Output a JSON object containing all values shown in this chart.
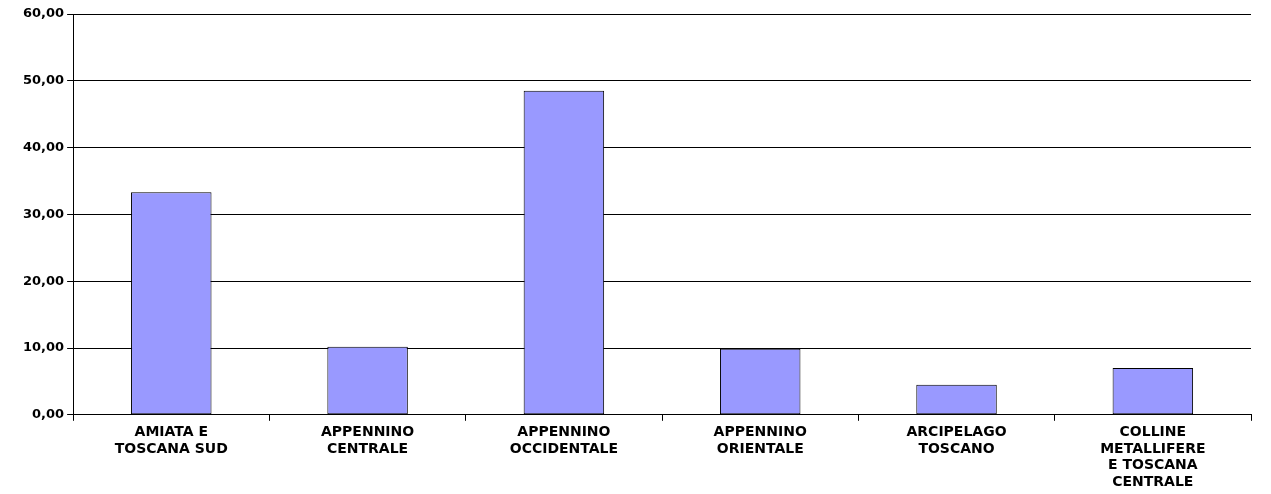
{
  "chart_data": {
    "type": "bar",
    "categories": [
      "AMIATA E TOSCANA SUD",
      "APPENNINO CENTRALE",
      "APPENNINO OCCIDENTALE",
      "APPENNINO ORIENTALE",
      "ARCIPELAGO TOSCANO",
      "COLLINE METALLIFERE E TOSCANA CENTRALE"
    ],
    "values": [
      33.3,
      10.2,
      48.5,
      9.9,
      4.5,
      7.0
    ],
    "color": "#9999ff",
    "ylim": [
      0,
      60
    ],
    "yticks": [
      {
        "value": 0,
        "label": "0,00"
      },
      {
        "value": 10,
        "label": "10,00"
      },
      {
        "value": 20,
        "label": "20,00"
      },
      {
        "value": 30,
        "label": "30,00"
      },
      {
        "value": 40,
        "label": "40,00"
      },
      {
        "value": 50,
        "label": "50,00"
      },
      {
        "value": 60,
        "label": "60,00"
      }
    ],
    "grid": "y",
    "legend": false
  }
}
